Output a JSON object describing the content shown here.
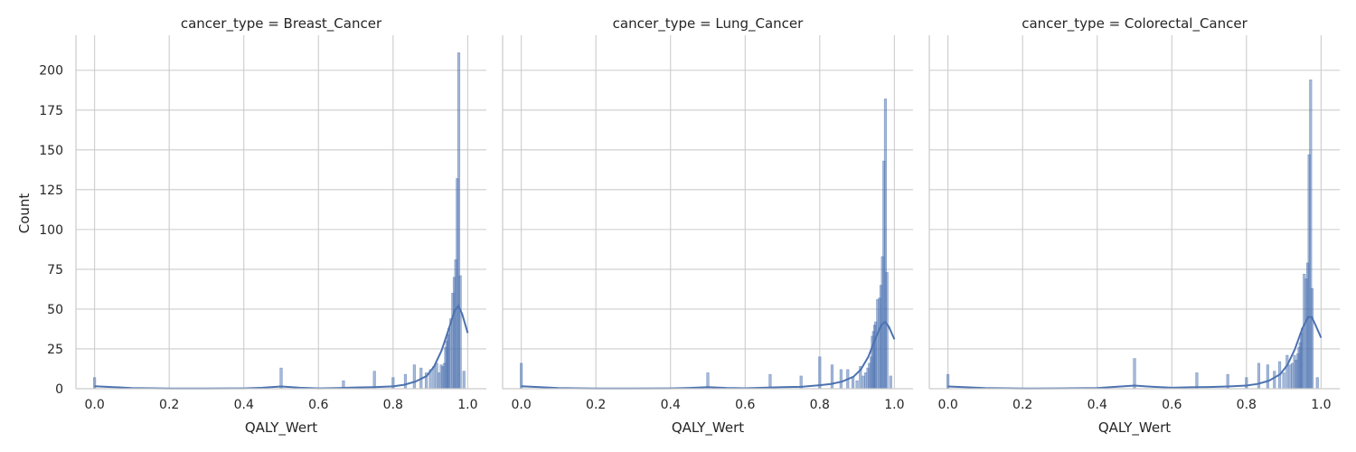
{
  "chart_data": {
    "type": "histogram",
    "facet_variable": "cancer_type",
    "xlabel": "QALY_Wert",
    "ylabel": "Count",
    "xlim": [
      -0.05,
      1.05
    ],
    "ylim": [
      0,
      222
    ],
    "x_ticks": [
      "0.0",
      "0.2",
      "0.4",
      "0.6",
      "0.8",
      "1.0"
    ],
    "y_ticks": [
      "0",
      "25",
      "50",
      "75",
      "100",
      "125",
      "150",
      "175",
      "200"
    ],
    "grid": true,
    "color": "#4c72b0",
    "panels": [
      {
        "title": "cancer_type = Breast_Cancer",
        "bins": [
          {
            "x": 0.0,
            "count": 7
          },
          {
            "x": 0.5,
            "count": 13
          },
          {
            "x": 0.667,
            "count": 5
          },
          {
            "x": 0.75,
            "count": 11
          },
          {
            "x": 0.8,
            "count": 7
          },
          {
            "x": 0.833,
            "count": 9
          },
          {
            "x": 0.857,
            "count": 15
          },
          {
            "x": 0.875,
            "count": 13
          },
          {
            "x": 0.889,
            "count": 10
          },
          {
            "x": 0.9,
            "count": 12
          },
          {
            "x": 0.909,
            "count": 14
          },
          {
            "x": 0.917,
            "count": 16
          },
          {
            "x": 0.923,
            "count": 10
          },
          {
            "x": 0.929,
            "count": 15
          },
          {
            "x": 0.933,
            "count": 14
          },
          {
            "x": 0.938,
            "count": 16
          },
          {
            "x": 0.941,
            "count": 26
          },
          {
            "x": 0.944,
            "count": 30
          },
          {
            "x": 0.947,
            "count": 34
          },
          {
            "x": 0.95,
            "count": 38
          },
          {
            "x": 0.955,
            "count": 44
          },
          {
            "x": 0.96,
            "count": 60
          },
          {
            "x": 0.964,
            "count": 70
          },
          {
            "x": 0.968,
            "count": 81
          },
          {
            "x": 0.972,
            "count": 132
          },
          {
            "x": 0.976,
            "count": 211
          },
          {
            "x": 0.98,
            "count": 71
          },
          {
            "x": 0.99,
            "count": 11
          }
        ],
        "kde": [
          [
            0.0,
            1.6
          ],
          [
            0.05,
            1.0
          ],
          [
            0.1,
            0.4
          ],
          [
            0.2,
            0.1
          ],
          [
            0.3,
            0.1
          ],
          [
            0.4,
            0.2
          ],
          [
            0.45,
            0.6
          ],
          [
            0.5,
            1.4
          ],
          [
            0.55,
            0.6
          ],
          [
            0.6,
            0.2
          ],
          [
            0.65,
            0.4
          ],
          [
            0.7,
            0.8
          ],
          [
            0.75,
            1.0
          ],
          [
            0.8,
            1.5
          ],
          [
            0.83,
            2.5
          ],
          [
            0.86,
            4.5
          ],
          [
            0.89,
            8.0
          ],
          [
            0.91,
            14
          ],
          [
            0.93,
            24
          ],
          [
            0.95,
            38
          ],
          [
            0.965,
            49
          ],
          [
            0.975,
            52
          ],
          [
            0.985,
            47
          ],
          [
            1.0,
            35
          ]
        ]
      },
      {
        "title": "cancer_type = Lung_Cancer",
        "bins": [
          {
            "x": 0.0,
            "count": 16
          },
          {
            "x": 0.5,
            "count": 10
          },
          {
            "x": 0.667,
            "count": 9
          },
          {
            "x": 0.75,
            "count": 8
          },
          {
            "x": 0.8,
            "count": 20
          },
          {
            "x": 0.833,
            "count": 15
          },
          {
            "x": 0.857,
            "count": 12
          },
          {
            "x": 0.875,
            "count": 12
          },
          {
            "x": 0.889,
            "count": 7
          },
          {
            "x": 0.9,
            "count": 5
          },
          {
            "x": 0.909,
            "count": 14
          },
          {
            "x": 0.917,
            "count": 8
          },
          {
            "x": 0.923,
            "count": 10
          },
          {
            "x": 0.929,
            "count": 13
          },
          {
            "x": 0.933,
            "count": 16
          },
          {
            "x": 0.938,
            "count": 20
          },
          {
            "x": 0.941,
            "count": 33
          },
          {
            "x": 0.944,
            "count": 36
          },
          {
            "x": 0.947,
            "count": 40
          },
          {
            "x": 0.95,
            "count": 42
          },
          {
            "x": 0.955,
            "count": 56
          },
          {
            "x": 0.96,
            "count": 57
          },
          {
            "x": 0.964,
            "count": 65
          },
          {
            "x": 0.968,
            "count": 83
          },
          {
            "x": 0.972,
            "count": 143
          },
          {
            "x": 0.976,
            "count": 182
          },
          {
            "x": 0.98,
            "count": 73
          },
          {
            "x": 0.99,
            "count": 8
          }
        ],
        "kde": [
          [
            0.0,
            1.6
          ],
          [
            0.05,
            1.0
          ],
          [
            0.1,
            0.4
          ],
          [
            0.2,
            0.1
          ],
          [
            0.3,
            0.1
          ],
          [
            0.4,
            0.2
          ],
          [
            0.45,
            0.5
          ],
          [
            0.5,
            1.0
          ],
          [
            0.55,
            0.5
          ],
          [
            0.6,
            0.3
          ],
          [
            0.65,
            0.6
          ],
          [
            0.7,
            1.0
          ],
          [
            0.75,
            1.2
          ],
          [
            0.8,
            2.2
          ],
          [
            0.83,
            3.0
          ],
          [
            0.86,
            4.5
          ],
          [
            0.89,
            7.5
          ],
          [
            0.91,
            12
          ],
          [
            0.93,
            20
          ],
          [
            0.95,
            32
          ],
          [
            0.965,
            40
          ],
          [
            0.975,
            42
          ],
          [
            0.985,
            39
          ],
          [
            1.0,
            31
          ]
        ]
      },
      {
        "title": "cancer_type = Colorectal_Cancer",
        "bins": [
          {
            "x": 0.0,
            "count": 9
          },
          {
            "x": 0.5,
            "count": 19
          },
          {
            "x": 0.667,
            "count": 10
          },
          {
            "x": 0.75,
            "count": 9
          },
          {
            "x": 0.8,
            "count": 7
          },
          {
            "x": 0.833,
            "count": 16
          },
          {
            "x": 0.857,
            "count": 15
          },
          {
            "x": 0.875,
            "count": 11
          },
          {
            "x": 0.889,
            "count": 17
          },
          {
            "x": 0.9,
            "count": 10
          },
          {
            "x": 0.909,
            "count": 21
          },
          {
            "x": 0.917,
            "count": 15
          },
          {
            "x": 0.923,
            "count": 16
          },
          {
            "x": 0.929,
            "count": 21
          },
          {
            "x": 0.933,
            "count": 18
          },
          {
            "x": 0.938,
            "count": 22
          },
          {
            "x": 0.941,
            "count": 26
          },
          {
            "x": 0.944,
            "count": 29
          },
          {
            "x": 0.947,
            "count": 35
          },
          {
            "x": 0.95,
            "count": 38
          },
          {
            "x": 0.955,
            "count": 72
          },
          {
            "x": 0.96,
            "count": 69
          },
          {
            "x": 0.964,
            "count": 79
          },
          {
            "x": 0.968,
            "count": 147
          },
          {
            "x": 0.972,
            "count": 194
          },
          {
            "x": 0.976,
            "count": 63
          },
          {
            "x": 0.99,
            "count": 7
          }
        ],
        "kde": [
          [
            0.0,
            1.4
          ],
          [
            0.05,
            0.9
          ],
          [
            0.1,
            0.4
          ],
          [
            0.2,
            0.1
          ],
          [
            0.3,
            0.2
          ],
          [
            0.4,
            0.4
          ],
          [
            0.45,
            1.2
          ],
          [
            0.5,
            2.0
          ],
          [
            0.55,
            1.2
          ],
          [
            0.6,
            0.6
          ],
          [
            0.65,
            0.9
          ],
          [
            0.7,
            1.1
          ],
          [
            0.75,
            1.4
          ],
          [
            0.8,
            2.0
          ],
          [
            0.83,
            3.0
          ],
          [
            0.86,
            5.0
          ],
          [
            0.89,
            9.0
          ],
          [
            0.91,
            15
          ],
          [
            0.93,
            25
          ],
          [
            0.95,
            38
          ],
          [
            0.965,
            45
          ],
          [
            0.975,
            45
          ],
          [
            0.985,
            40
          ],
          [
            1.0,
            32
          ]
        ]
      }
    ]
  }
}
